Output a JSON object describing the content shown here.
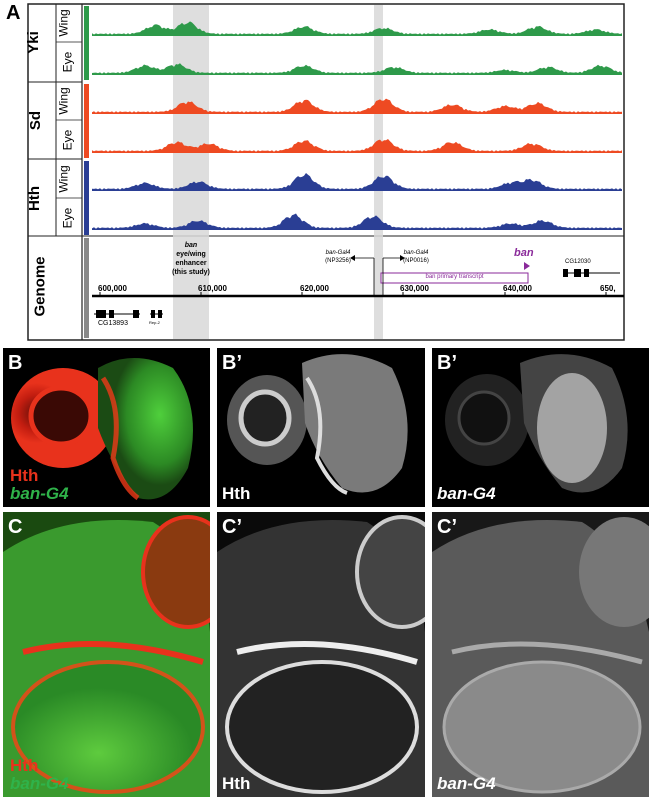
{
  "panel_a": {
    "letter": "A",
    "groups": [
      {
        "name": "Yki",
        "tracks": [
          "Wing",
          "Eye"
        ],
        "color": "#2e9a4a"
      },
      {
        "name": "Sd",
        "tracks": [
          "Wing",
          "Eye"
        ],
        "color": "#ee4a22"
      },
      {
        "name": "Hth",
        "tracks": [
          "Wing",
          "Eye"
        ],
        "color": "#2a3e94"
      }
    ],
    "genome_label": "Genome",
    "coords": [
      "600,000",
      "610,000",
      "620,000",
      "630,000",
      "640,000",
      "650,"
    ],
    "enhancer_label": [
      "ban",
      "eye/wing",
      "enhancer",
      "(this study)"
    ],
    "nps1": [
      "ban-Gal4",
      "(NP3256)"
    ],
    "nps2": [
      "ban-Gal4",
      "(NP0016)"
    ],
    "ban_label": "ban",
    "transcript_label": "ban primary transcript",
    "gene_left": "CG13893",
    "gene_left2": "Rep-2",
    "gene_right": "CG12030",
    "accent_purple": "#8a2a9a"
  },
  "panel_b": {
    "letters": [
      "B",
      "B’",
      "B’"
    ],
    "merge_labels": [
      "Hth",
      "ban-G4"
    ],
    "single_labels": [
      "Hth",
      "ban-G4"
    ]
  },
  "panel_c": {
    "letters": [
      "C",
      "C’",
      "C’"
    ],
    "merge_labels": [
      "Hth",
      "ban-G4"
    ],
    "single_labels": [
      "Hth",
      "ban-G4"
    ]
  }
}
